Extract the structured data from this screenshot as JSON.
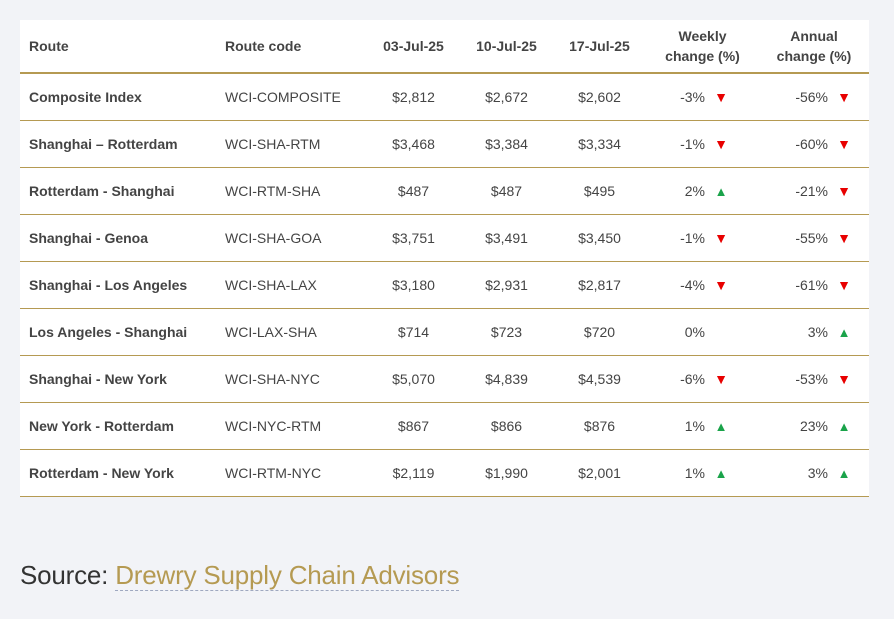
{
  "table": {
    "headers": {
      "route": "Route",
      "code": "Route code",
      "d1": "03-Jul-25",
      "d2": "10-Jul-25",
      "d3": "17-Jul-25",
      "weekly_1": "Weekly",
      "weekly_2": "change (%)",
      "annual_1": "Annual",
      "annual_2": "change (%)"
    },
    "rows": [
      {
        "route": "Composite Index",
        "code": "WCI-COMPOSITE",
        "d1": "$2,812",
        "d2": "$2,672",
        "d3": "$2,602",
        "weekly": "-3%",
        "weekly_dir": "down",
        "annual": "-56%",
        "annual_dir": "down"
      },
      {
        "route": "Shanghai – Rotterdam",
        "code": "WCI-SHA-RTM",
        "d1": "$3,468",
        "d2": "$3,384",
        "d3": "$3,334",
        "weekly": "-1%",
        "weekly_dir": "down",
        "annual": "-60%",
        "annual_dir": "down"
      },
      {
        "route": "Rotterdam - Shanghai",
        "code": "WCI-RTM-SHA",
        "d1": "$487",
        "d2": "$487",
        "d3": "$495",
        "weekly": "2%",
        "weekly_dir": "up",
        "annual": "-21%",
        "annual_dir": "down"
      },
      {
        "route": "Shanghai - Genoa",
        "code": "WCI-SHA-GOA",
        "d1": "$3,751",
        "d2": "$3,491",
        "d3": "$3,450",
        "weekly": "-1%",
        "weekly_dir": "down",
        "annual": "-55%",
        "annual_dir": "down"
      },
      {
        "route": "Shanghai - Los Angeles",
        "code": "WCI-SHA-LAX",
        "d1": "$3,180",
        "d2": "$2,931",
        "d3": "$2,817",
        "weekly": "-4%",
        "weekly_dir": "down",
        "annual": "-61%",
        "annual_dir": "down"
      },
      {
        "route": "Los Angeles - Shanghai",
        "code": "WCI-LAX-SHA",
        "d1": "$714",
        "d2": "$723",
        "d3": "$720",
        "weekly": "0%",
        "weekly_dir": "none",
        "annual": "3%",
        "annual_dir": "up"
      },
      {
        "route": "Shanghai - New York",
        "code": "WCI-SHA-NYC",
        "d1": "$5,070",
        "d2": "$4,839",
        "d3": "$4,539",
        "weekly": "-6%",
        "weekly_dir": "down",
        "annual": "-53%",
        "annual_dir": "down"
      },
      {
        "route": "New York - Rotterdam",
        "code": "WCI-NYC-RTM",
        "d1": "$867",
        "d2": "$866",
        "d3": "$876",
        "weekly": "1%",
        "weekly_dir": "up",
        "annual": "23%",
        "annual_dir": "up"
      },
      {
        "route": "Rotterdam - New York",
        "code": "WCI-RTM-NYC",
        "d1": "$2,119",
        "d2": "$1,990",
        "d3": "$2,001",
        "weekly": "1%",
        "weekly_dir": "up",
        "annual": "3%",
        "annual_dir": "up"
      }
    ],
    "colors": {
      "down": "#e80000",
      "up": "#1aa34a",
      "rule": "#b59a52"
    },
    "icons": {
      "down": "triangle-down-icon",
      "up": "triangle-up-icon"
    }
  },
  "source": {
    "prefix": "Source: ",
    "link_text": "Drewry Supply Chain Advisors"
  }
}
